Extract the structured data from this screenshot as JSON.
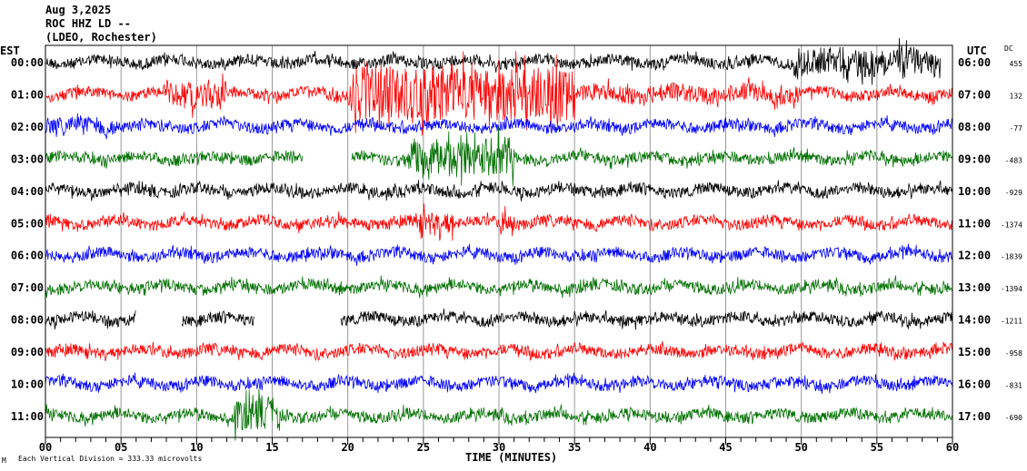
{
  "header": {
    "date": "Aug 3,2025",
    "station": "ROC HHZ LD --",
    "network": "(LDEO, Rochester)"
  },
  "left_zone_label": "EST",
  "right_zone_label": "UTC",
  "dc_label": "DC",
  "footer": {
    "mark": "M",
    "scale_note": "Each Vertical Division =  333.33 microvolts"
  },
  "chart_data": {
    "type": "line",
    "xlabel": "TIME (MINUTES)",
    "xlim": [
      0,
      60
    ],
    "x_ticks": [
      "00",
      "05",
      "10",
      "15",
      "20",
      "25",
      "30",
      "35",
      "40",
      "45",
      "50",
      "55",
      "60"
    ],
    "grid": "vertical lines every 5 minutes",
    "rows": [
      {
        "est": "00:00",
        "utc": "06:00",
        "dc": "455",
        "color": "#000000",
        "gaps": [
          [
            59.2,
            60
          ]
        ],
        "bursts": [
          [
            49.5,
            60,
            2.5
          ]
        ]
      },
      {
        "est": "01:00",
        "utc": "07:00",
        "dc": "132",
        "color": "#ff0000",
        "gaps": [],
        "bursts": [
          [
            8,
            12,
            2.5
          ],
          [
            20,
            35,
            5
          ],
          [
            35,
            50,
            1.6
          ]
        ]
      },
      {
        "est": "02:00",
        "utc": "08:00",
        "dc": "-77",
        "color": "#0000ff",
        "gaps": [],
        "bursts": [
          [
            0,
            5,
            1.5
          ]
        ]
      },
      {
        "est": "03:00",
        "utc": "09:00",
        "dc": "-483",
        "color": "#007000",
        "gaps": [
          [
            17,
            20.2
          ]
        ],
        "bursts": [
          [
            24,
            31,
            3.5
          ]
        ]
      },
      {
        "est": "04:00",
        "utc": "10:00",
        "dc": "-929",
        "color": "#000000",
        "gaps": [],
        "bursts": []
      },
      {
        "est": "05:00",
        "utc": "11:00",
        "dc": "-1374",
        "color": "#ff0000",
        "gaps": [],
        "bursts": [
          [
            24.5,
            27,
            2.2
          ],
          [
            30,
            31,
            2.2
          ]
        ]
      },
      {
        "est": "06:00",
        "utc": "12:00",
        "dc": "-1839",
        "color": "#0000ff",
        "gaps": [],
        "bursts": []
      },
      {
        "est": "07:00",
        "utc": "13:00",
        "dc": "-1394",
        "color": "#007000",
        "gaps": [],
        "bursts": []
      },
      {
        "est": "08:00",
        "utc": "14:00",
        "dc": "-1211",
        "color": "#000000",
        "gaps": [
          [
            6,
            9
          ],
          [
            13.8,
            19.5
          ]
        ],
        "bursts": []
      },
      {
        "est": "09:00",
        "utc": "15:00",
        "dc": "-958",
        "color": "#ff0000",
        "gaps": [],
        "bursts": []
      },
      {
        "est": "10:00",
        "utc": "16:00",
        "dc": "-831",
        "color": "#0000ff",
        "gaps": [],
        "bursts": []
      },
      {
        "est": "11:00",
        "utc": "17:00",
        "dc": "-690",
        "color": "#007000",
        "gaps": [],
        "bursts": [
          [
            12.5,
            15.5,
            3
          ]
        ]
      }
    ]
  }
}
